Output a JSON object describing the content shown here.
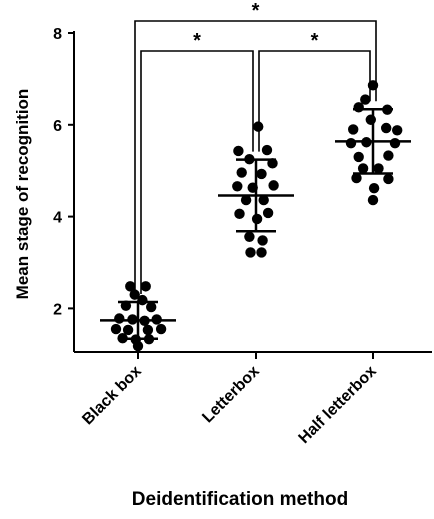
{
  "chart_data": {
    "type": "scatter",
    "xlabel": "Deidentification method",
    "ylabel": "Mean stage of recognition",
    "ylim": [
      1.05,
      8
    ],
    "yticks": [
      2,
      4,
      6,
      8
    ],
    "categories": [
      "Black box",
      "Letterbox",
      "Half letterbox"
    ],
    "groups": [
      {
        "category": "Black box",
        "mean": 1.74,
        "sd_low": 1.34,
        "sd_high": 2.14,
        "points": [
          {
            "offset": -0.07,
            "y": 2.48
          },
          {
            "offset": 0.07,
            "y": 2.48
          },
          {
            "offset": -0.03,
            "y": 2.3
          },
          {
            "offset": 0.04,
            "y": 2.18
          },
          {
            "offset": -0.11,
            "y": 2.06
          },
          {
            "offset": 0.12,
            "y": 2.03
          },
          {
            "offset": -0.17,
            "y": 1.78
          },
          {
            "offset": -0.05,
            "y": 1.76
          },
          {
            "offset": 0.06,
            "y": 1.73
          },
          {
            "offset": 0.17,
            "y": 1.76
          },
          {
            "offset": -0.2,
            "y": 1.55
          },
          {
            "offset": -0.09,
            "y": 1.53
          },
          {
            "offset": 0.09,
            "y": 1.53
          },
          {
            "offset": 0.21,
            "y": 1.55
          },
          {
            "offset": -0.14,
            "y": 1.35
          },
          {
            "offset": -0.02,
            "y": 1.32
          },
          {
            "offset": 0.1,
            "y": 1.33
          },
          {
            "offset": 0.0,
            "y": 1.18
          }
        ]
      },
      {
        "category": "Letterbox",
        "mean": 4.46,
        "sd_low": 3.68,
        "sd_high": 5.24,
        "points": [
          {
            "offset": 0.02,
            "y": 5.96
          },
          {
            "offset": -0.16,
            "y": 5.43
          },
          {
            "offset": 0.1,
            "y": 5.45
          },
          {
            "offset": -0.06,
            "y": 5.25
          },
          {
            "offset": 0.15,
            "y": 5.16
          },
          {
            "offset": -0.13,
            "y": 4.96
          },
          {
            "offset": 0.05,
            "y": 4.93
          },
          {
            "offset": -0.17,
            "y": 4.66
          },
          {
            "offset": -0.03,
            "y": 4.63
          },
          {
            "offset": 0.16,
            "y": 4.68
          },
          {
            "offset": -0.09,
            "y": 4.36
          },
          {
            "offset": 0.07,
            "y": 4.36
          },
          {
            "offset": -0.15,
            "y": 4.06
          },
          {
            "offset": 0.11,
            "y": 4.08
          },
          {
            "offset": 0.01,
            "y": 3.95
          },
          {
            "offset": -0.06,
            "y": 3.56
          },
          {
            "offset": 0.06,
            "y": 3.48
          },
          {
            "offset": -0.05,
            "y": 3.22
          },
          {
            "offset": 0.05,
            "y": 3.22
          }
        ]
      },
      {
        "category": "Half letterbox",
        "mean": 5.64,
        "sd_low": 4.94,
        "sd_high": 6.34,
        "points": [
          {
            "offset": 0.0,
            "y": 6.86
          },
          {
            "offset": -0.07,
            "y": 6.55
          },
          {
            "offset": -0.13,
            "y": 6.38
          },
          {
            "offset": 0.13,
            "y": 6.33
          },
          {
            "offset": -0.02,
            "y": 6.11
          },
          {
            "offset": -0.18,
            "y": 5.9
          },
          {
            "offset": 0.12,
            "y": 5.93
          },
          {
            "offset": 0.22,
            "y": 5.88
          },
          {
            "offset": -0.2,
            "y": 5.6
          },
          {
            "offset": -0.06,
            "y": 5.62
          },
          {
            "offset": 0.2,
            "y": 5.6
          },
          {
            "offset": -0.13,
            "y": 5.3
          },
          {
            "offset": 0.14,
            "y": 5.33
          },
          {
            "offset": -0.09,
            "y": 5.05
          },
          {
            "offset": 0.05,
            "y": 5.05
          },
          {
            "offset": -0.15,
            "y": 4.84
          },
          {
            "offset": 0.14,
            "y": 4.82
          },
          {
            "offset": 0.01,
            "y": 4.62
          },
          {
            "offset": 0.0,
            "y": 4.36
          }
        ]
      }
    ],
    "significance": [
      {
        "from": "Black box",
        "to": "Letterbox",
        "label": "*"
      },
      {
        "from": "Letterbox",
        "to": "Half letterbox",
        "label": "*"
      },
      {
        "from": "Black box",
        "to": "Half letterbox",
        "label": "*"
      }
    ]
  }
}
